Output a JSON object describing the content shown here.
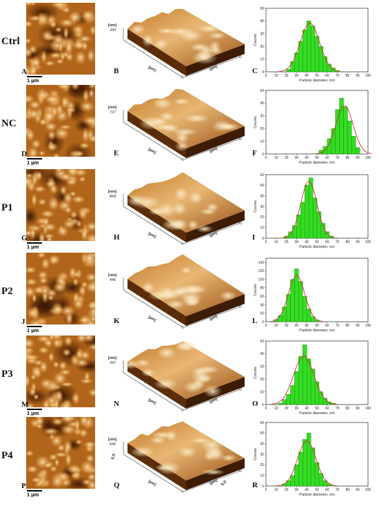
{
  "scale_bar_label": "1 µm",
  "axis_3d": {
    "z_unit": "[nm]",
    "x_unit": "[µm]",
    "y_unit": "[µm]",
    "q_tick_zero": "0.0",
    "q_tick_max": "5.0"
  },
  "colors": {
    "afm_dark": "#3a1703",
    "afm_mid": "#b0651a",
    "afm_light": "#f6e0b0",
    "bar_fill": "#33dd22",
    "fit_curve": "#d42a2a"
  },
  "rows": [
    {
      "label": "Ctrl",
      "image2d_letter": "A",
      "image3d_letter": "B",
      "hist_letter": "C",
      "z_max_label": "330"
    },
    {
      "label": "NC",
      "image2d_letter": "D",
      "image3d_letter": "E",
      "hist_letter": "F",
      "z_max_label": "727"
    },
    {
      "label": "P1",
      "image2d_letter": "G",
      "image3d_letter": "H",
      "hist_letter": "I",
      "z_max_label": "668"
    },
    {
      "label": "P2",
      "image2d_letter": "J",
      "image3d_letter": "K",
      "hist_letter": "L",
      "z_max_label": "446"
    },
    {
      "label": "P3",
      "image2d_letter": "M",
      "image3d_letter": "N",
      "hist_letter": "O",
      "z_max_label": "297"
    },
    {
      "label": "P4",
      "image2d_letter": "P",
      "image3d_letter": "Q",
      "hist_letter": "R",
      "z_max_label": "645"
    }
  ],
  "chart_data": [
    {
      "type": "bar",
      "panel": "C",
      "ylabel": "Counts",
      "xlabel": "Particle diameter, nm",
      "xlim": [
        0,
        100
      ],
      "ylim": [
        0,
        50
      ],
      "xticks": [
        0,
        10,
        20,
        30,
        40,
        50,
        60,
        70,
        80,
        90,
        100
      ],
      "yticks": [
        0,
        10,
        20,
        30,
        40,
        50
      ],
      "bin_width": 4,
      "bin_centers": [
        22,
        26,
        30,
        34,
        38,
        42,
        46,
        50,
        54,
        58,
        62,
        66,
        70
      ],
      "values": [
        2,
        8,
        15,
        24,
        33,
        40,
        36,
        28,
        20,
        12,
        6,
        3,
        1
      ],
      "fit": {
        "mean": 43,
        "sd": 9.5
      }
    },
    {
      "type": "bar",
      "panel": "F",
      "ylabel": "Counts",
      "xlabel": "Particle diameter, nm",
      "xlim": [
        0,
        100
      ],
      "ylim": [
        0,
        50
      ],
      "xticks": [
        0,
        10,
        20,
        30,
        40,
        50,
        60,
        70,
        80,
        90,
        100
      ],
      "yticks": [
        0,
        10,
        20,
        30,
        40,
        50
      ],
      "bin_width": 4,
      "bin_centers": [
        54,
        58,
        62,
        66,
        70,
        74,
        78,
        82,
        86,
        90
      ],
      "values": [
        3,
        6,
        12,
        20,
        35,
        44,
        37,
        26,
        14,
        5
      ],
      "fit": {
        "mean": 77,
        "sd": 8.5
      }
    },
    {
      "type": "bar",
      "panel": "I",
      "ylabel": "Counts",
      "xlabel": "Particle diameter, nm",
      "xlim": [
        0,
        100
      ],
      "ylim": [
        0,
        60
      ],
      "xticks": [
        0,
        10,
        20,
        30,
        40,
        50,
        60,
        70,
        80,
        90,
        100
      ],
      "yticks": [
        0,
        10,
        20,
        30,
        40,
        50,
        60
      ],
      "bin_width": 4,
      "bin_centers": [
        20,
        24,
        28,
        32,
        36,
        40,
        44,
        48,
        52,
        56,
        60,
        64
      ],
      "values": [
        2,
        6,
        12,
        22,
        34,
        50,
        57,
        38,
        25,
        14,
        6,
        2
      ],
      "fit": {
        "mean": 42,
        "sd": 8
      }
    },
    {
      "type": "bar",
      "panel": "L",
      "ylabel": "Counts",
      "xlabel": "Particle diameter, nm",
      "xlim": [
        0,
        100
      ],
      "ylim": [
        0,
        150
      ],
      "xticks": [
        0,
        10,
        20,
        30,
        40,
        50,
        60,
        70,
        80,
        90,
        100
      ],
      "yticks": [
        0,
        20,
        40,
        60,
        80,
        100,
        120,
        140
      ],
      "bin_width": 4,
      "bin_centers": [
        10,
        14,
        18,
        22,
        26,
        30,
        34,
        38,
        42,
        46,
        50
      ],
      "values": [
        5,
        15,
        35,
        65,
        100,
        125,
        95,
        60,
        30,
        12,
        4
      ],
      "fit": {
        "mean": 30,
        "sd": 8
      }
    },
    {
      "type": "bar",
      "panel": "O",
      "ylabel": "Counts",
      "xlabel": "Particle diameter, nm",
      "xlim": [
        0,
        100
      ],
      "ylim": [
        0,
        50
      ],
      "xticks": [
        0,
        10,
        20,
        30,
        40,
        50,
        60,
        70,
        80,
        90,
        100
      ],
      "yticks": [
        0,
        10,
        20,
        30,
        40,
        50
      ],
      "bin_width": 4,
      "bin_centers": [
        14,
        18,
        22,
        26,
        30,
        34,
        38,
        42,
        46,
        50,
        54,
        58,
        62,
        66
      ],
      "values": [
        1,
        4,
        8,
        15,
        26,
        38,
        47,
        36,
        28,
        18,
        10,
        5,
        2,
        1
      ],
      "fit": {
        "mean": 37,
        "sd": 10
      }
    },
    {
      "type": "bar",
      "panel": "R",
      "ylabel": "Counts",
      "xlabel": "Particle diameter, nm",
      "xlim": [
        0,
        100
      ],
      "ylim": [
        0,
        60
      ],
      "xticks": [
        0,
        10,
        20,
        30,
        40,
        50,
        60,
        70,
        80,
        90,
        100
      ],
      "yticks": [
        0,
        10,
        20,
        30,
        40,
        50,
        60
      ],
      "bin_width": 4,
      "bin_centers": [
        18,
        22,
        26,
        30,
        34,
        38,
        42,
        46,
        50,
        54,
        58,
        62
      ],
      "values": [
        2,
        5,
        10,
        20,
        32,
        44,
        50,
        36,
        22,
        12,
        5,
        2
      ],
      "fit": {
        "mean": 40,
        "sd": 9
      }
    }
  ]
}
